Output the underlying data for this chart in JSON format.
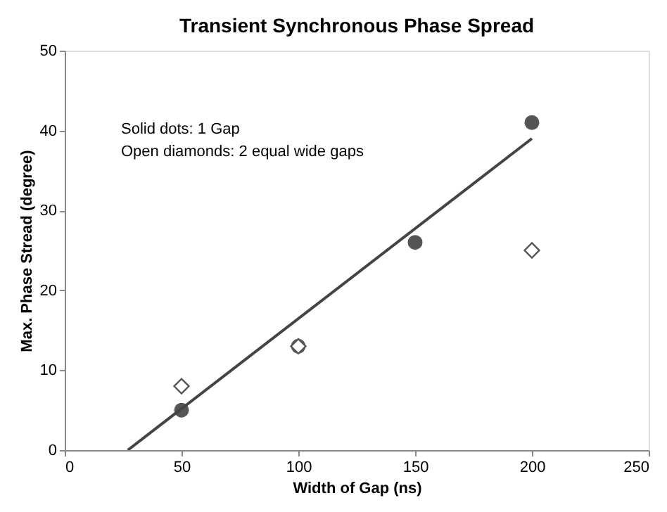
{
  "chart_data": {
    "type": "scatter",
    "title": "Transient Synchronous Phase Spread",
    "xlabel": "Width of Gap (ns)",
    "ylabel": "Max. Phase Stread (degree)",
    "annotations": [
      "Solid dots: 1 Gap",
      "Open diamonds: 2 equal wide gaps"
    ],
    "series": [
      {
        "type": "scatter",
        "marker": "circle",
        "color": "#555555",
        "x": [
          50,
          100,
          150,
          200
        ],
        "values": [
          5,
          13,
          26,
          41
        ]
      },
      {
        "type": "scatter",
        "marker": "diamond",
        "color": "#555555",
        "x": [
          50,
          100,
          200
        ],
        "values": [
          8,
          13,
          25
        ]
      },
      {
        "type": "line",
        "color": "#444444",
        "x": [
          27,
          200
        ],
        "values": [
          0,
          39
        ]
      }
    ],
    "xlim": [
      0,
      250
    ],
    "xticks": [
      0,
      50,
      100,
      150,
      200,
      250
    ],
    "ylim": [
      0,
      50
    ],
    "yticks": [
      0,
      10,
      20,
      30,
      40,
      50
    ],
    "grid": false
  }
}
